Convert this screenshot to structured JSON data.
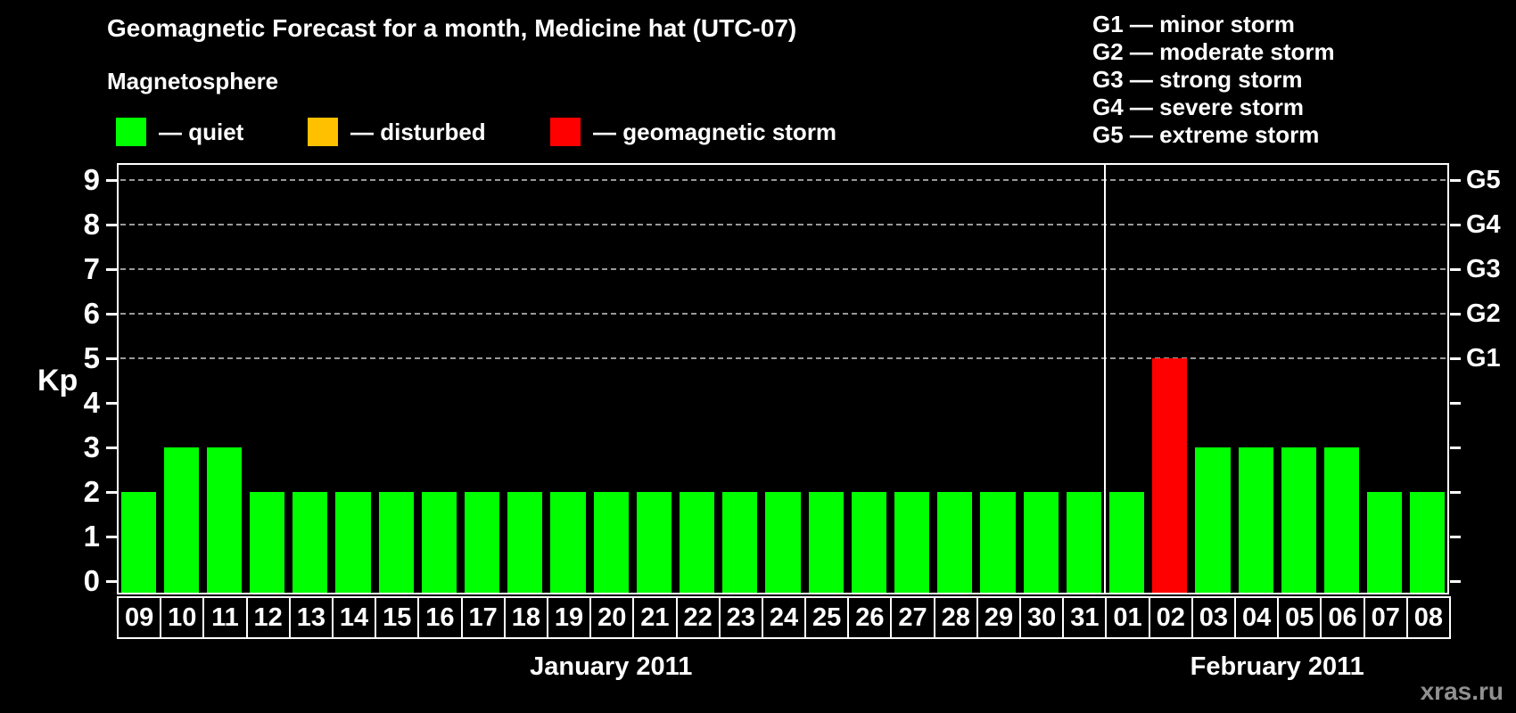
{
  "title": "Geomagnetic Forecast for a month, Medicine hat (UTC-07)",
  "legend": {
    "heading": "Magnetosphere",
    "items": [
      {
        "name": "quiet",
        "label": "— quiet",
        "color": "#00ff00"
      },
      {
        "name": "disturbed",
        "label": "— disturbed",
        "color": "#ffc000"
      },
      {
        "name": "storm",
        "label": "— geomagnetic storm",
        "color": "#ff0000"
      }
    ]
  },
  "g_scale_legend": [
    "G1 — minor storm",
    "G2 — moderate storm",
    "G3 — strong storm",
    "G4 — severe storm",
    "G5 — extreme storm"
  ],
  "watermark": "xras.ru",
  "chart_data": {
    "type": "bar",
    "title": "Geomagnetic Forecast for a month, Medicine hat (UTC-07)",
    "ylabel": "Kp",
    "ylim": [
      0,
      9
    ],
    "yticks": [
      0,
      1,
      2,
      3,
      4,
      5,
      6,
      7,
      8,
      9
    ],
    "gridlines_at": [
      5,
      6,
      7,
      8,
      9
    ],
    "grid": "dashed horizontal at G-storm levels only",
    "legend_position": "top-left and top-right",
    "right_axis": [
      {
        "label": "G1",
        "value": 5
      },
      {
        "label": "G2",
        "value": 6
      },
      {
        "label": "G3",
        "value": 7
      },
      {
        "label": "G4",
        "value": 8
      },
      {
        "label": "G5",
        "value": 9
      }
    ],
    "colors": {
      "quiet": "#00ff00",
      "disturbed": "#ffc000",
      "storm": "#ff0000"
    },
    "months": [
      {
        "label": "January 2011",
        "days": [
          {
            "day": "09",
            "kp": 2,
            "status": "quiet"
          },
          {
            "day": "10",
            "kp": 3,
            "status": "quiet"
          },
          {
            "day": "11",
            "kp": 3,
            "status": "quiet"
          },
          {
            "day": "12",
            "kp": 2,
            "status": "quiet"
          },
          {
            "day": "13",
            "kp": 2,
            "status": "quiet"
          },
          {
            "day": "14",
            "kp": 2,
            "status": "quiet"
          },
          {
            "day": "15",
            "kp": 2,
            "status": "quiet"
          },
          {
            "day": "16",
            "kp": 2,
            "status": "quiet"
          },
          {
            "day": "17",
            "kp": 2,
            "status": "quiet"
          },
          {
            "day": "18",
            "kp": 2,
            "status": "quiet"
          },
          {
            "day": "19",
            "kp": 2,
            "status": "quiet"
          },
          {
            "day": "20",
            "kp": 2,
            "status": "quiet"
          },
          {
            "day": "21",
            "kp": 2,
            "status": "quiet"
          },
          {
            "day": "22",
            "kp": 2,
            "status": "quiet"
          },
          {
            "day": "23",
            "kp": 2,
            "status": "quiet"
          },
          {
            "day": "24",
            "kp": 2,
            "status": "quiet"
          },
          {
            "day": "25",
            "kp": 2,
            "status": "quiet"
          },
          {
            "day": "26",
            "kp": 2,
            "status": "quiet"
          },
          {
            "day": "27",
            "kp": 2,
            "status": "quiet"
          },
          {
            "day": "28",
            "kp": 2,
            "status": "quiet"
          },
          {
            "day": "29",
            "kp": 2,
            "status": "quiet"
          },
          {
            "day": "30",
            "kp": 2,
            "status": "quiet"
          },
          {
            "day": "31",
            "kp": 2,
            "status": "quiet"
          }
        ]
      },
      {
        "label": "February 2011",
        "days": [
          {
            "day": "01",
            "kp": 2,
            "status": "quiet"
          },
          {
            "day": "02",
            "kp": 5,
            "status": "storm"
          },
          {
            "day": "03",
            "kp": 3,
            "status": "quiet"
          },
          {
            "day": "04",
            "kp": 3,
            "status": "quiet"
          },
          {
            "day": "05",
            "kp": 3,
            "status": "quiet"
          },
          {
            "day": "06",
            "kp": 3,
            "status": "quiet"
          },
          {
            "day": "07",
            "kp": 2,
            "status": "quiet"
          },
          {
            "day": "08",
            "kp": 2,
            "status": "quiet"
          }
        ]
      }
    ]
  }
}
